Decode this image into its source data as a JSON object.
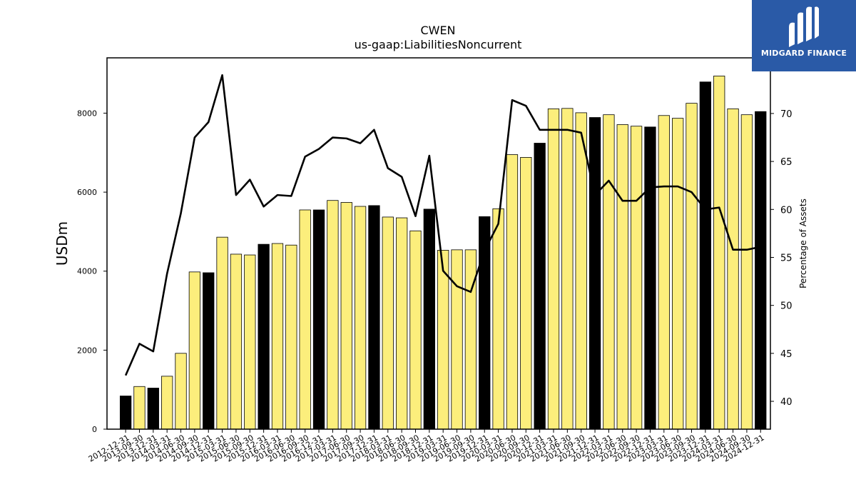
{
  "logo": {
    "text": "MIDGARD FINANCE",
    "background": "#2a5aa7"
  },
  "chart_data": {
    "type": "bar",
    "title": "CWEN",
    "subtitle": "us-gaap:LiabilitiesNoncurrent",
    "ylabel": "USDm",
    "ylabel_right": "Percentage of Assets",
    "ylim": [
      0,
      9400
    ],
    "ylim_right": [
      37.1,
      75.8
    ],
    "yticks": [
      0,
      2000,
      4000,
      6000,
      8000
    ],
    "yticks_right": [
      40,
      45,
      50,
      55,
      60,
      65,
      70
    ],
    "categories": [
      "2012-12-31",
      "2013-09-30",
      "2013-12-31",
      "2014-03-31",
      "2014-06-30",
      "2014-09-30",
      "2014-12-31",
      "2015-03-31",
      "2015-06-30",
      "2015-09-30",
      "2015-12-31",
      "2016-03-31",
      "2016-06-30",
      "2016-09-30",
      "2016-12-31",
      "2017-03-31",
      "2017-06-30",
      "2017-09-30",
      "2017-12-31",
      "2018-03-31",
      "2018-06-30",
      "2018-09-30",
      "2018-12-31",
      "2019-03-31",
      "2019-06-30",
      "2019-09-30",
      "2019-12-31",
      "2020-03-31",
      "2020-06-30",
      "2020-09-30",
      "2020-12-31",
      "2021-03-31",
      "2021-06-30",
      "2021-09-30",
      "2021-12-31",
      "2022-03-31",
      "2022-06-30",
      "2022-09-30",
      "2022-12-31",
      "2023-03-31",
      "2023-06-30",
      "2023-09-30",
      "2023-12-31",
      "2024-03-31",
      "2024-06-30",
      "2024-09-30",
      "2024-12-31"
    ],
    "series": [
      {
        "values": [
          840,
          1080,
          1040,
          1340,
          1920,
          3980,
          3960,
          4860,
          4430,
          4410,
          4680,
          4700,
          4660,
          5550,
          5550,
          5790,
          5740,
          5640,
          5660,
          5370,
          5350,
          5020,
          5570,
          4530,
          4540,
          4540,
          5380,
          5580,
          6950,
          6880,
          7240,
          8110,
          8120,
          8010,
          7890,
          7960,
          7710,
          7670,
          7650,
          7940,
          7870,
          8250,
          8790,
          8940,
          8110,
          7960,
          8040
        ],
        "highlight": [
          true,
          false,
          true,
          false,
          false,
          false,
          true,
          false,
          false,
          false,
          true,
          false,
          false,
          false,
          true,
          false,
          false,
          false,
          true,
          false,
          false,
          false,
          true,
          false,
          false,
          false,
          true,
          false,
          false,
          false,
          true,
          false,
          false,
          false,
          true,
          false,
          false,
          false,
          true,
          false,
          false,
          false,
          true,
          false,
          false,
          false,
          true
        ]
      },
      {
        "type": "line",
        "axis": "right",
        "values": [
          42.7,
          46.0,
          45.2,
          53.3,
          59.6,
          67.5,
          69.1,
          74.0,
          61.5,
          63.1,
          60.3,
          61.5,
          61.4,
          65.5,
          66.3,
          67.5,
          67.4,
          66.9,
          68.3,
          64.3,
          63.4,
          59.3,
          65.6,
          53.6,
          52.0,
          51.4,
          55.7,
          58.5,
          71.4,
          70.8,
          68.3,
          68.3,
          68.3,
          68.0,
          61.5,
          63.0,
          60.9,
          60.9,
          62.3,
          62.4,
          62.4,
          61.8,
          60.0,
          60.2,
          55.8,
          55.8,
          56.1
        ]
      }
    ],
    "colors": {
      "bar": "#fcee7c",
      "bar_highlight": "#000000",
      "line": "#000000",
      "edge": "#000000"
    }
  }
}
